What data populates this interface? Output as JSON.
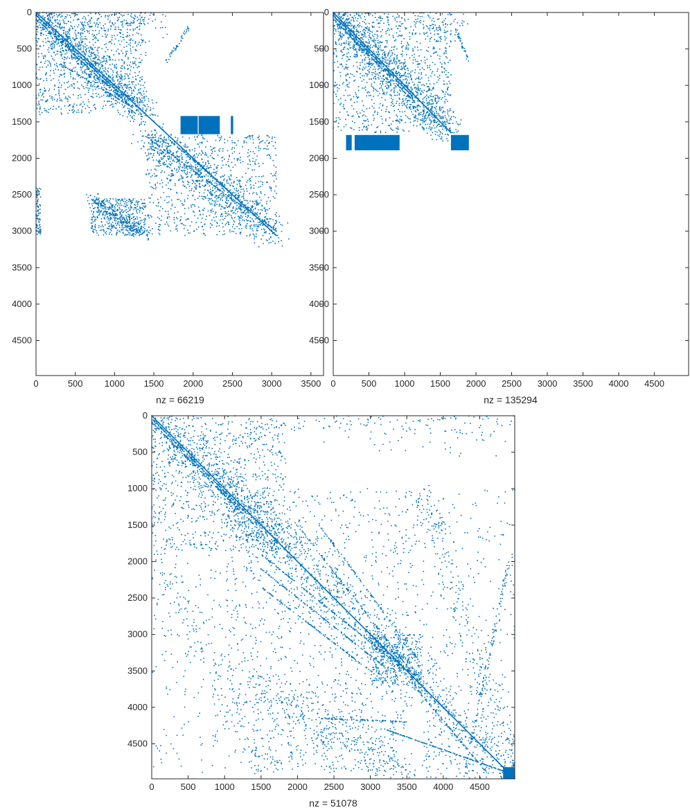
{
  "figure": {
    "description_free": true
  },
  "chart_data": [
    {
      "type": "scatter",
      "name": "spy-plot-top-left",
      "xlabel": "nz = 66219",
      "xlim": [
        0,
        3660
      ],
      "ylim": [
        0,
        4980
      ],
      "y_reversed": true,
      "x_ticks": [
        0,
        500,
        1000,
        1500,
        2000,
        2500,
        3000,
        3500
      ],
      "y_ticks": [
        0,
        500,
        1000,
        1500,
        2000,
        2500,
        3000,
        3500,
        4000,
        4500
      ],
      "color": "#0072BD",
      "diagonal_segments": [
        [
          0,
          0,
          1400,
          1400
        ],
        [
          1400,
          1400,
          3060,
          3060
        ]
      ],
      "bands": [
        {
          "x0": 0,
          "y0": 40,
          "x1": 1100,
          "y1": 1140,
          "n": 160
        },
        {
          "x0": 0,
          "y0": 90,
          "x1": 1150,
          "y1": 1240,
          "n": 120
        },
        {
          "x0": 300,
          "y0": 700,
          "x1": 1300,
          "y1": 1350,
          "n": 80
        },
        {
          "x0": 1400,
          "y0": 1700,
          "x1": 3000,
          "y1": 2950,
          "n": 140
        },
        {
          "x0": 1700,
          "y0": 1750,
          "x1": 3060,
          "y1": 3000,
          "n": 120
        },
        {
          "x0": 1950,
          "y0": 200,
          "x1": 1650,
          "y1": 700,
          "n": 40
        }
      ],
      "clusters": [
        {
          "x0": 0,
          "y0": 0,
          "x1": 1400,
          "y1": 1400,
          "n": 1700
        },
        {
          "x0": 1400,
          "y0": 1680,
          "x1": 3060,
          "y1": 3060,
          "n": 1500
        },
        {
          "x0": 700,
          "y0": 2550,
          "x1": 1400,
          "y1": 3060,
          "n": 650
        },
        {
          "x0": 0,
          "y0": 0,
          "x1": 1650,
          "y1": 250,
          "n": 120
        },
        {
          "x0": 0,
          "y0": 2400,
          "x1": 60,
          "y1": 3060,
          "n": 90
        }
      ],
      "blocks": [
        {
          "x0": 1840,
          "y0": 1420,
          "x1": 2060,
          "y1": 1670
        },
        {
          "x0": 2070,
          "y0": 1420,
          "x1": 2340,
          "y1": 1670
        },
        {
          "x0": 2480,
          "y0": 1420,
          "x1": 2510,
          "y1": 1670
        }
      ]
    },
    {
      "type": "scatter",
      "name": "spy-plot-top-right",
      "xlabel": "nz = 135294",
      "xlim": [
        0,
        4980
      ],
      "ylim": [
        0,
        4980
      ],
      "y_reversed": true,
      "x_ticks": [
        0,
        500,
        1000,
        1500,
        2000,
        2500,
        3000,
        3500,
        4000,
        4500
      ],
      "y_ticks": [
        0,
        500,
        1000,
        1500,
        2000,
        2500,
        3000,
        3500,
        4000,
        4500
      ],
      "color": "#0072BD",
      "diagonal_segments": [
        [
          0,
          0,
          1650,
          1650
        ]
      ],
      "bands": [
        {
          "x0": 0,
          "y0": 40,
          "x1": 1100,
          "y1": 1140,
          "n": 150
        },
        {
          "x0": 0,
          "y0": 90,
          "x1": 1150,
          "y1": 1240,
          "n": 110
        },
        {
          "x0": 1700,
          "y0": 180,
          "x1": 1900,
          "y1": 680,
          "n": 40
        }
      ],
      "clusters": [
        {
          "x0": 0,
          "y0": 0,
          "x1": 1650,
          "y1": 1650,
          "n": 1900
        },
        {
          "x0": 0,
          "y0": 0,
          "x1": 1900,
          "y1": 250,
          "n": 120
        }
      ],
      "blocks": [
        {
          "x0": 180,
          "y0": 1680,
          "x1": 260,
          "y1": 1890
        },
        {
          "x0": 300,
          "y0": 1680,
          "x1": 930,
          "y1": 1890
        },
        {
          "x0": 1650,
          "y0": 1680,
          "x1": 1900,
          "y1": 1890
        }
      ]
    },
    {
      "type": "scatter",
      "name": "spy-plot-bottom",
      "xlabel": "nz = 51078",
      "xlim": [
        0,
        4980
      ],
      "ylim": [
        0,
        4980
      ],
      "y_reversed": true,
      "x_ticks": [
        0,
        500,
        1000,
        1500,
        2000,
        2500,
        3000,
        3500,
        4000,
        4500
      ],
      "y_ticks": [
        0,
        500,
        1000,
        1500,
        2000,
        2500,
        3000,
        3500,
        4000,
        4500
      ],
      "color": "#0072BD",
      "diagonal_segments": [
        [
          0,
          0,
          4980,
          4980
        ]
      ],
      "bands": [
        {
          "x0": 0,
          "y0": 40,
          "x1": 1300,
          "y1": 1340,
          "n": 170
        },
        {
          "x0": 0,
          "y0": 90,
          "x1": 1400,
          "y1": 1490,
          "n": 140
        },
        {
          "x0": 1500,
          "y0": 1900,
          "x1": 3300,
          "y1": 3350,
          "n": 140
        },
        {
          "x0": 1500,
          "y0": 2100,
          "x1": 3200,
          "y1": 3450,
          "n": 120
        },
        {
          "x0": 1500,
          "y0": 2350,
          "x1": 3000,
          "y1": 3500,
          "n": 110
        },
        {
          "x0": 2000,
          "y0": 1500,
          "x1": 3600,
          "y1": 3550,
          "n": 130
        },
        {
          "x0": 2300,
          "y0": 1500,
          "x1": 3700,
          "y1": 3400,
          "n": 110
        },
        {
          "x0": 3200,
          "y0": 4300,
          "x1": 4900,
          "y1": 4900,
          "n": 150
        },
        {
          "x0": 2300,
          "y0": 4150,
          "x1": 3500,
          "y1": 4200,
          "n": 80
        },
        {
          "x0": 4900,
          "y0": 2000,
          "x1": 4300,
          "y1": 4900,
          "n": 110
        },
        {
          "x0": 3600,
          "y0": 3700,
          "x1": 4600,
          "y1": 4900,
          "n": 100
        }
      ],
      "clusters": [
        {
          "x0": 0,
          "y0": 0,
          "x1": 1850,
          "y1": 1850,
          "n": 1500
        },
        {
          "x0": 1000,
          "y0": 1000,
          "x1": 3700,
          "y1": 3700,
          "n": 1300
        },
        {
          "x0": 3000,
          "y0": 3000,
          "x1": 3700,
          "y1": 3700,
          "n": 500
        },
        {
          "x0": 1400,
          "y0": 3700,
          "x1": 3500,
          "y1": 4900,
          "n": 700
        },
        {
          "x0": 0,
          "y0": 1800,
          "x1": 1500,
          "y1": 4900,
          "n": 380
        },
        {
          "x0": 3700,
          "y0": 1000,
          "x1": 4980,
          "y1": 4900,
          "n": 520
        },
        {
          "x0": 1800,
          "y0": 0,
          "x1": 4980,
          "y1": 250,
          "n": 160
        },
        {
          "x0": 3700,
          "y0": 3700,
          "x1": 4980,
          "y1": 4980,
          "n": 350
        }
      ],
      "blocks": [
        {
          "x0": 4820,
          "y0": 4820,
          "x1": 4980,
          "y1": 4980
        }
      ]
    }
  ]
}
